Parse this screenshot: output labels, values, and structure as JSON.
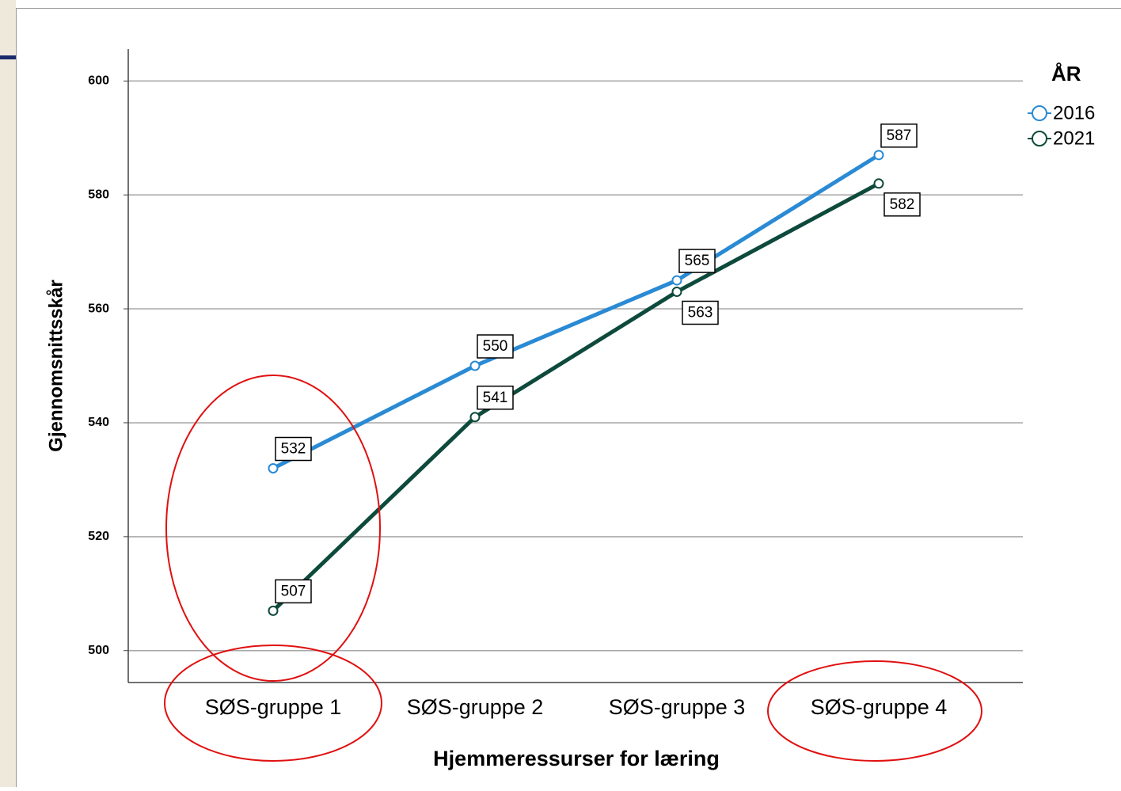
{
  "chart_data": {
    "type": "line",
    "x_label": "Hjemmeressurser for læring",
    "y_label": "Gjennomsnittsskår",
    "legend_title": "ÅR",
    "legend_position": "right",
    "categories": [
      "SØS-gruppe 1",
      "SØS-gruppe 2",
      "SØS-gruppe 3",
      "SØS-gruppe 4"
    ],
    "series": [
      {
        "name": "2016",
        "color": "#2a8ad4",
        "values": [
          532,
          550,
          565,
          587
        ]
      },
      {
        "name": "2021",
        "color": "#0e4a3c",
        "values": [
          507,
          541,
          563,
          582
        ]
      }
    ],
    "ylim": [
      494.4,
      605.6
    ],
    "yticks": [
      500,
      520,
      540,
      560,
      580,
      600
    ],
    "grid": true
  }
}
